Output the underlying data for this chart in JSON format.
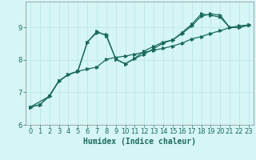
{
  "xlabel": "Humidex (Indice chaleur)",
  "bg_color": "#d6f5f5",
  "grid_color": "#b8e8e8",
  "line_color": "#1a6b5a",
  "xlim": [
    -0.5,
    23.5
  ],
  "ylim": [
    6.0,
    9.8
  ],
  "yticks": [
    6,
    7,
    8,
    9
  ],
  "xticks": [
    0,
    1,
    2,
    3,
    4,
    5,
    6,
    7,
    8,
    9,
    10,
    11,
    12,
    13,
    14,
    15,
    16,
    17,
    18,
    19,
    20,
    21,
    22,
    23
  ],
  "line1_x": [
    0,
    1,
    2,
    3,
    4,
    5,
    6,
    7,
    8,
    9,
    10,
    11,
    12,
    13,
    14,
    15,
    16,
    17,
    18,
    19,
    20,
    21,
    22,
    23
  ],
  "line1_y": [
    6.55,
    6.62,
    6.9,
    7.35,
    7.55,
    7.65,
    7.72,
    7.78,
    8.02,
    8.08,
    8.12,
    8.18,
    8.24,
    8.3,
    8.36,
    8.43,
    8.52,
    8.65,
    8.72,
    8.82,
    8.9,
    9.0,
    9.05,
    9.08
  ],
  "line2_x": [
    0,
    1,
    2,
    3,
    4,
    5,
    6,
    7,
    8,
    9,
    10,
    11,
    12,
    13,
    14,
    15,
    16,
    17,
    18,
    19,
    20,
    21,
    22,
    23
  ],
  "line2_y": [
    6.55,
    6.62,
    6.88,
    7.35,
    7.55,
    7.65,
    8.55,
    8.85,
    8.78,
    8.02,
    7.88,
    8.05,
    8.18,
    8.35,
    8.52,
    8.62,
    8.82,
    9.05,
    9.35,
    9.42,
    9.38,
    9.0,
    9.0,
    9.08
  ],
  "line3_x": [
    0,
    2,
    3,
    4,
    5,
    6,
    7,
    8,
    9,
    10,
    11,
    12,
    13,
    14,
    15,
    16,
    17,
    18,
    19,
    20,
    21,
    22,
    23
  ],
  "line3_y": [
    6.55,
    6.88,
    7.35,
    7.55,
    7.65,
    8.55,
    8.88,
    8.75,
    8.02,
    7.88,
    8.05,
    8.28,
    8.42,
    8.55,
    8.62,
    8.85,
    9.1,
    9.42,
    9.38,
    9.32,
    9.0,
    9.0,
    9.08
  ],
  "tick_fontsize": 6.0,
  "xlabel_fontsize": 7.0
}
